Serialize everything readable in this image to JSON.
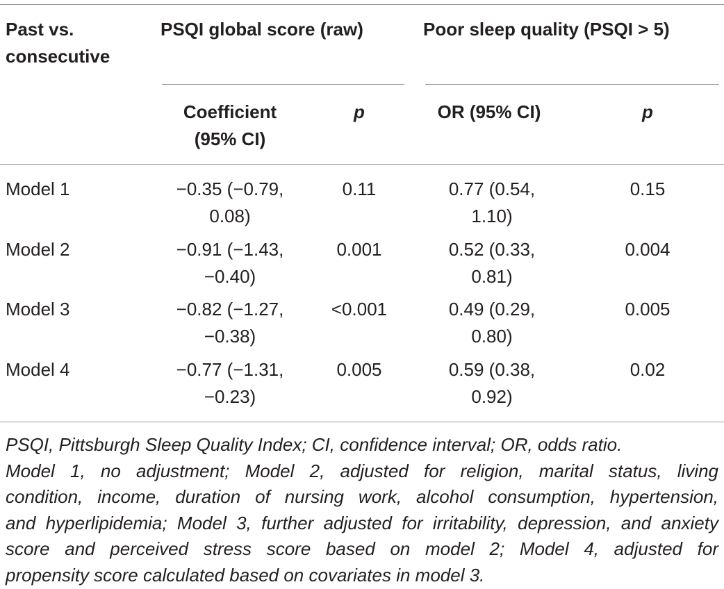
{
  "table": {
    "headers": {
      "row_label": [
        "Past vs.",
        "consecutive"
      ],
      "group1": "PSQI global score (raw)",
      "group2": "Poor sleep quality (PSQI > 5)",
      "sub_coef": [
        "Coefficient",
        "(95% CI)"
      ],
      "sub_p1": "p",
      "sub_or": "OR (95% CI)",
      "sub_p2": "p"
    },
    "rows": [
      {
        "label": "Model 1",
        "coef": [
          "−0.35 (−0.79,",
          "0.08)"
        ],
        "p1": "0.11",
        "or": [
          "0.77 (0.54,",
          "1.10)"
        ],
        "p2": "0.15"
      },
      {
        "label": "Model 2",
        "coef": [
          "−0.91 (−1.43,",
          "−0.40)"
        ],
        "p1": "0.001",
        "or": [
          "0.52 (0.33,",
          "0.81)"
        ],
        "p2": "0.004"
      },
      {
        "label": "Model 3",
        "coef": [
          "−0.82 (−1.27,",
          "−0.38)"
        ],
        "p1": "<0.001",
        "or": [
          "0.49 (0.29,",
          "0.80)"
        ],
        "p2": "0.005"
      },
      {
        "label": "Model 4",
        "coef": [
          "−0.77 (−1.31,",
          "−0.23)"
        ],
        "p1": "0.005",
        "or": [
          "0.59 (0.38,",
          "0.92)"
        ],
        "p2": "0.02"
      }
    ]
  },
  "footnote": {
    "lines": [
      "PSQI, Pittsburgh Sleep Quality Index; CI, confidence interval; OR, odds ratio.",
      "Model 1, no adjustment; Model 2, adjusted for religion, marital status, living",
      "condition, income, duration of nursing work, alcohol consumption, hypertension,",
      "and hyperlipidemia; Model 3, further adjusted for irritability, depression, and anxiety",
      "score and perceived stress score based on model 2; Model 4, adjusted for",
      "propensity score calculated based on covariates in model 3."
    ]
  }
}
